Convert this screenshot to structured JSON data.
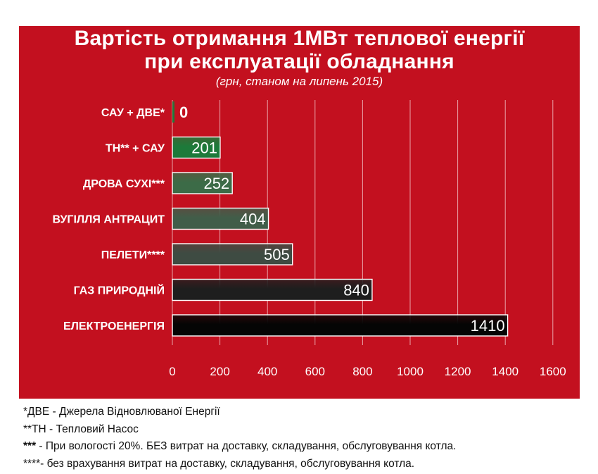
{
  "chart_data": {
    "type": "bar",
    "orientation": "horizontal",
    "title_line1": "Вартість отримання 1МВт теплової енергії",
    "title_line2": "при експлуатації обладнання",
    "subtitle": "(грн, станом на липень 2015)",
    "categories": [
      "САУ + ДВЕ*",
      "ТН** + САУ",
      "ДРОВА СУХІ***",
      "ВУГІЛЛЯ АНТРАЦИТ",
      "ПЕЛЕТИ****",
      "ГАЗ ПРИРОДНІЙ",
      "ЕЛЕКТРОЕНЕРГІЯ"
    ],
    "values": [
      0,
      201,
      252,
      404,
      505,
      840,
      1410
    ],
    "value_labels": [
      "0",
      "201",
      "252",
      "404",
      "505",
      "840",
      "1410"
    ],
    "bar_colors": [
      "#1d7a3a",
      "#1d7a3a",
      "#3c6b47",
      "#415d49",
      "#3e4b42",
      "#1e1e1e",
      "#050505"
    ],
    "xlim": [
      0,
      1600
    ],
    "x_ticks": [
      0,
      200,
      400,
      600,
      800,
      1000,
      1200,
      1400,
      1600
    ],
    "x_tick_labels": [
      "0",
      "200",
      "400",
      "600",
      "800",
      "1000",
      "1200",
      "1400",
      "1600"
    ],
    "grid": "vertical",
    "legend": "none"
  },
  "footnotes": [
    {
      "mark": "",
      "text": "*ДВЕ  - Джерела Відновлюваної Енергії"
    },
    {
      "mark": "",
      "text": "**ТН  - Тепловий Насос"
    },
    {
      "mark": "***",
      "text": " - При вологості 20%. БЕЗ витрат на  доставку, складування, обслуговування котла."
    },
    {
      "mark": "",
      "text": "****- без врахування витрат на  доставку, складування, обслуговування котла."
    }
  ],
  "colors": {
    "panel": "#c3101f",
    "text": "#ffffff",
    "grid": "#e9a3a9"
  }
}
